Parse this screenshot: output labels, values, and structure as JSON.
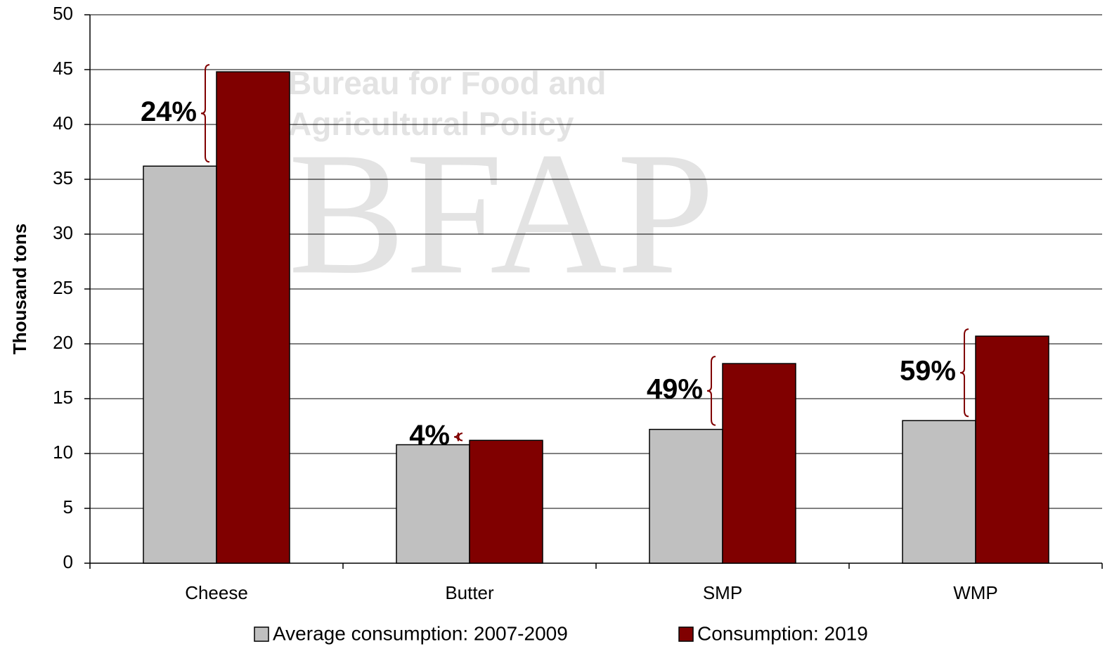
{
  "chart_data": {
    "type": "bar",
    "y_label": "Thousand tons",
    "categories": [
      "Cheese",
      "Butter",
      "SMP",
      "WMP"
    ],
    "series": [
      {
        "name": "Average consumption: 2007-2009",
        "color": "#c0c0c0",
        "values": [
          36.2,
          10.8,
          12.2,
          13.0
        ]
      },
      {
        "name": "Consumption: 2019",
        "color": "#800000",
        "values": [
          44.8,
          11.2,
          18.2,
          20.7
        ]
      }
    ],
    "annotations": [
      "24%",
      "4%",
      "49%",
      "59%"
    ],
    "watermark": [
      "Bureau for Food and",
      "Agricultural Policy",
      "BFAP"
    ],
    "ylim": [
      0,
      50
    ],
    "yticks": [
      0,
      5,
      10,
      15,
      20,
      25,
      30,
      35,
      40,
      45,
      50
    ],
    "grid": true
  }
}
